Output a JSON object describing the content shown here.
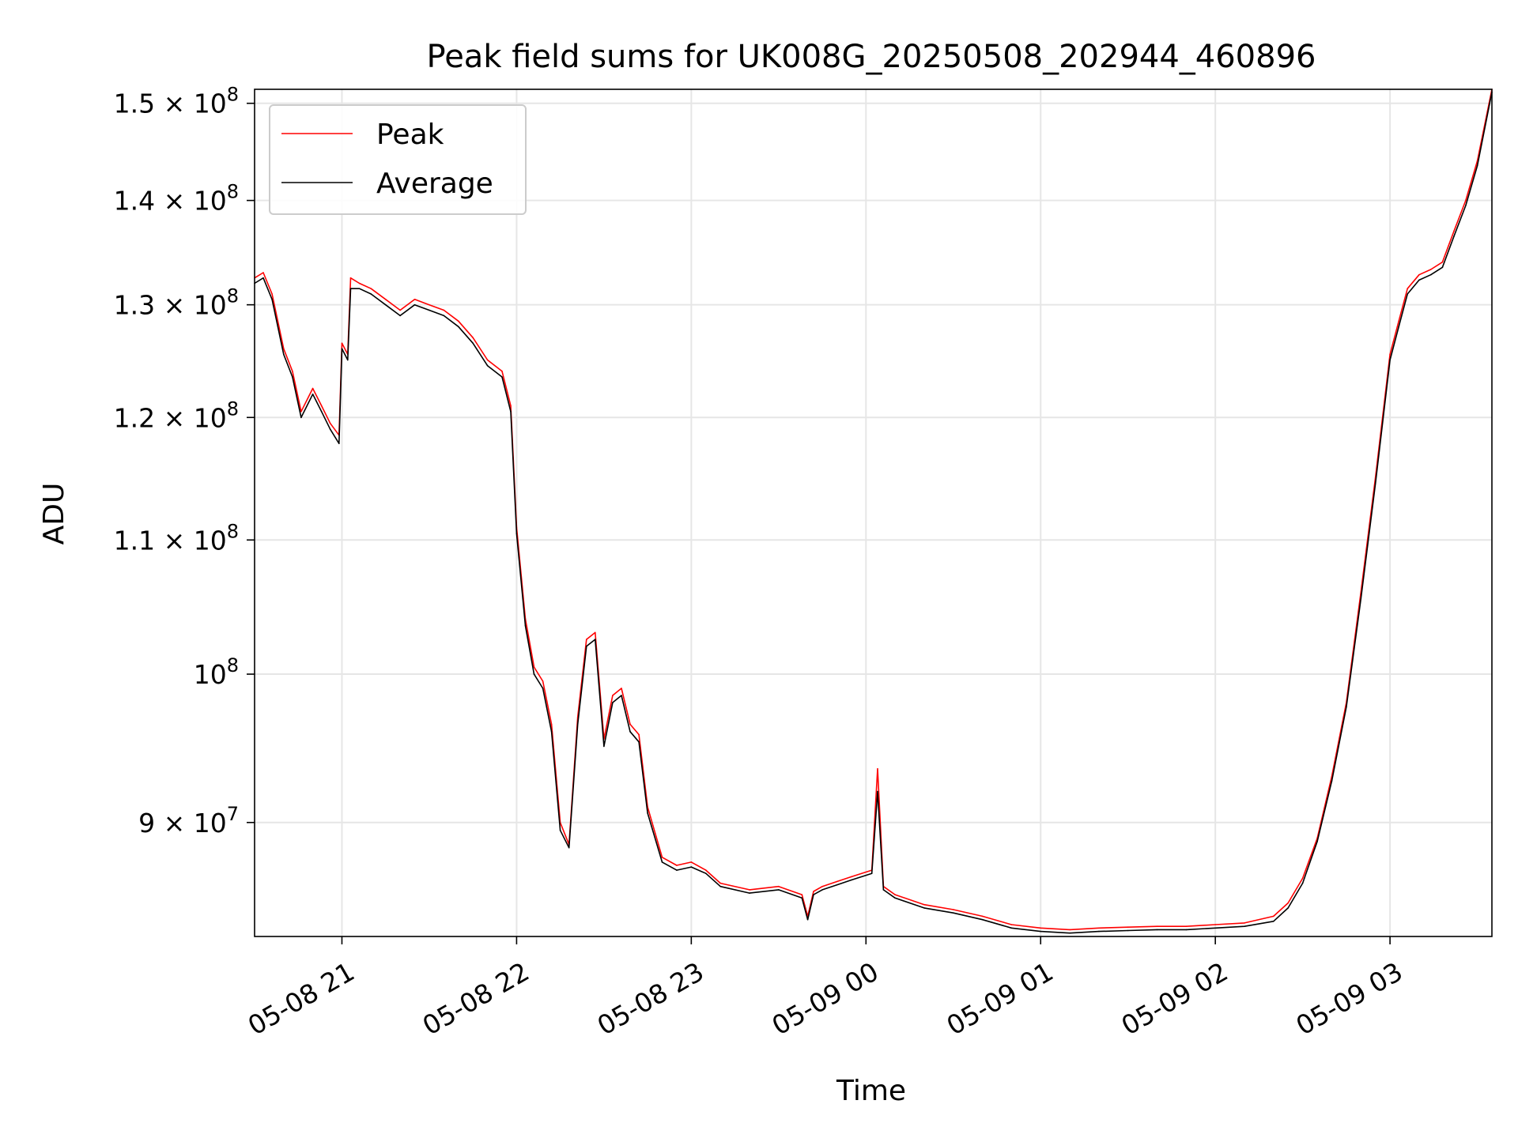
{
  "chart_data": {
    "type": "line",
    "title": "Peak field sums for UK008G_20250508_202944_460896",
    "xlabel": "Time",
    "ylabel": "ADU",
    "y_scale": "log",
    "xlim": [
      "2025-05-08 20:30",
      "2025-05-09 03:35"
    ],
    "ylim": [
      83000000,
      151500000
    ],
    "grid": true,
    "legend_position": "top-left",
    "x_ticks": [
      {
        "t": "2025-05-08 21:00",
        "label": "05-08 21"
      },
      {
        "t": "2025-05-08 22:00",
        "label": "05-08 22"
      },
      {
        "t": "2025-05-08 23:00",
        "label": "05-08 23"
      },
      {
        "t": "2025-05-09 00:00",
        "label": "05-09 00"
      },
      {
        "t": "2025-05-09 01:00",
        "label": "05-09 01"
      },
      {
        "t": "2025-05-09 02:00",
        "label": "05-09 02"
      },
      {
        "t": "2025-05-09 03:00",
        "label": "05-09 03"
      }
    ],
    "y_ticks": [
      {
        "v": 90000000,
        "base": "9 × 10",
        "exp": "7"
      },
      {
        "v": 100000000,
        "base": "10",
        "exp": "8"
      },
      {
        "v": 110000000,
        "base": "1.1 × 10",
        "exp": "8"
      },
      {
        "v": 120000000,
        "base": "1.2 × 10",
        "exp": "8"
      },
      {
        "v": 130000000,
        "base": "1.3 × 10",
        "exp": "8"
      },
      {
        "v": 140000000,
        "base": "1.4 × 10",
        "exp": "8"
      },
      {
        "v": 150000000,
        "base": "1.5 × 10",
        "exp": "8"
      }
    ],
    "series": [
      {
        "name": "Peak",
        "color": "#ff0000",
        "x": [
          "2025-05-08 20:30",
          "2025-05-08 20:33",
          "2025-05-08 20:36",
          "2025-05-08 20:40",
          "2025-05-08 20:43",
          "2025-05-08 20:46",
          "2025-05-08 20:50",
          "2025-05-08 20:53",
          "2025-05-08 20:56",
          "2025-05-08 20:59",
          "2025-05-08 21:00",
          "2025-05-08 21:02",
          "2025-05-08 21:03",
          "2025-05-08 21:06",
          "2025-05-08 21:10",
          "2025-05-08 21:15",
          "2025-05-08 21:20",
          "2025-05-08 21:25",
          "2025-05-08 21:30",
          "2025-05-08 21:35",
          "2025-05-08 21:40",
          "2025-05-08 21:45",
          "2025-05-08 21:50",
          "2025-05-08 21:55",
          "2025-05-08 21:58",
          "2025-05-08 22:00",
          "2025-05-08 22:03",
          "2025-05-08 22:06",
          "2025-05-08 22:09",
          "2025-05-08 22:12",
          "2025-05-08 22:15",
          "2025-05-08 22:18",
          "2025-05-08 22:21",
          "2025-05-08 22:24",
          "2025-05-08 22:27",
          "2025-05-08 22:30",
          "2025-05-08 22:33",
          "2025-05-08 22:36",
          "2025-05-08 22:39",
          "2025-05-08 22:42",
          "2025-05-08 22:45",
          "2025-05-08 22:50",
          "2025-05-08 22:55",
          "2025-05-08 23:00",
          "2025-05-08 23:05",
          "2025-05-08 23:10",
          "2025-05-08 23:20",
          "2025-05-08 23:30",
          "2025-05-08 23:38",
          "2025-05-08 23:40",
          "2025-05-08 23:42",
          "2025-05-08 23:45",
          "2025-05-08 23:50",
          "2025-05-08 23:55",
          "2025-05-09 00:02",
          "2025-05-09 00:04",
          "2025-05-09 00:06",
          "2025-05-09 00:10",
          "2025-05-09 00:20",
          "2025-05-09 00:30",
          "2025-05-09 00:40",
          "2025-05-09 00:50",
          "2025-05-09 01:00",
          "2025-05-09 01:10",
          "2025-05-09 01:20",
          "2025-05-09 01:30",
          "2025-05-09 01:40",
          "2025-05-09 01:50",
          "2025-05-09 02:00",
          "2025-05-09 02:10",
          "2025-05-09 02:20",
          "2025-05-09 02:25",
          "2025-05-09 02:30",
          "2025-05-09 02:35",
          "2025-05-09 02:40",
          "2025-05-09 02:45",
          "2025-05-09 02:50",
          "2025-05-09 02:55",
          "2025-05-09 03:00",
          "2025-05-09 03:03",
          "2025-05-09 03:06",
          "2025-05-09 03:10",
          "2025-05-09 03:14",
          "2025-05-09 03:18",
          "2025-05-09 03:22",
          "2025-05-09 03:26",
          "2025-05-09 03:30",
          "2025-05-09 03:35"
        ],
        "values": [
          132500000,
          133000000,
          131000000,
          126000000,
          124000000,
          120500000,
          122500000,
          121000000,
          119500000,
          118500000,
          126500000,
          125500000,
          132500000,
          132000000,
          131500000,
          130500000,
          129500000,
          130500000,
          130000000,
          129500000,
          128500000,
          127000000,
          125000000,
          124000000,
          121000000,
          111000000,
          104000000,
          100500000,
          99500000,
          96500000,
          90000000,
          88600000,
          97000000,
          102500000,
          103000000,
          95500000,
          98500000,
          99000000,
          96500000,
          95800000,
          91000000,
          87800000,
          87300000,
          87500000,
          87000000,
          86200000,
          85800000,
          86000000,
          85500000,
          84200000,
          85700000,
          86000000,
          86300000,
          86600000,
          87000000,
          93500000,
          86000000,
          85500000,
          84900000,
          84600000,
          84200000,
          83700000,
          83500000,
          83400000,
          83500000,
          83550000,
          83600000,
          83600000,
          83700000,
          83800000,
          84200000,
          85000000,
          86500000,
          89000000,
          93000000,
          98000000,
          106000000,
          115000000,
          125500000,
          128500000,
          131500000,
          132800000,
          133300000,
          134000000,
          137000000,
          140000000,
          144000000,
          151500000
        ]
      },
      {
        "name": "Average",
        "color": "#000000",
        "x": [
          "2025-05-08 20:30",
          "2025-05-08 20:33",
          "2025-05-08 20:36",
          "2025-05-08 20:40",
          "2025-05-08 20:43",
          "2025-05-08 20:46",
          "2025-05-08 20:50",
          "2025-05-08 20:53",
          "2025-05-08 20:56",
          "2025-05-08 20:59",
          "2025-05-08 21:00",
          "2025-05-08 21:02",
          "2025-05-08 21:03",
          "2025-05-08 21:06",
          "2025-05-08 21:10",
          "2025-05-08 21:15",
          "2025-05-08 21:20",
          "2025-05-08 21:25",
          "2025-05-08 21:30",
          "2025-05-08 21:35",
          "2025-05-08 21:40",
          "2025-05-08 21:45",
          "2025-05-08 21:50",
          "2025-05-08 21:55",
          "2025-05-08 21:58",
          "2025-05-08 22:00",
          "2025-05-08 22:03",
          "2025-05-08 22:06",
          "2025-05-08 22:09",
          "2025-05-08 22:12",
          "2025-05-08 22:15",
          "2025-05-08 22:18",
          "2025-05-08 22:21",
          "2025-05-08 22:24",
          "2025-05-08 22:27",
          "2025-05-08 22:30",
          "2025-05-08 22:33",
          "2025-05-08 22:36",
          "2025-05-08 22:39",
          "2025-05-08 22:42",
          "2025-05-08 22:45",
          "2025-05-08 22:50",
          "2025-05-08 22:55",
          "2025-05-08 23:00",
          "2025-05-08 23:05",
          "2025-05-08 23:10",
          "2025-05-08 23:20",
          "2025-05-08 23:30",
          "2025-05-08 23:38",
          "2025-05-08 23:40",
          "2025-05-08 23:42",
          "2025-05-08 23:45",
          "2025-05-08 23:50",
          "2025-05-08 23:55",
          "2025-05-09 00:02",
          "2025-05-09 00:04",
          "2025-05-09 00:06",
          "2025-05-09 00:10",
          "2025-05-09 00:20",
          "2025-05-09 00:30",
          "2025-05-09 00:40",
          "2025-05-09 00:50",
          "2025-05-09 01:00",
          "2025-05-09 01:10",
          "2025-05-09 01:20",
          "2025-05-09 01:30",
          "2025-05-09 01:40",
          "2025-05-09 01:50",
          "2025-05-09 02:00",
          "2025-05-09 02:10",
          "2025-05-09 02:20",
          "2025-05-09 02:25",
          "2025-05-09 02:30",
          "2025-05-09 02:35",
          "2025-05-09 02:40",
          "2025-05-09 02:45",
          "2025-05-09 02:50",
          "2025-05-09 02:55",
          "2025-05-09 03:00",
          "2025-05-09 03:03",
          "2025-05-09 03:06",
          "2025-05-09 03:10",
          "2025-05-09 03:14",
          "2025-05-09 03:18",
          "2025-05-09 03:22",
          "2025-05-09 03:26",
          "2025-05-09 03:30",
          "2025-05-09 03:35"
        ],
        "values": [
          132000000,
          132500000,
          130500000,
          125500000,
          123500000,
          120000000,
          122000000,
          120500000,
          119000000,
          117800000,
          126000000,
          125000000,
          131500000,
          131500000,
          131000000,
          130000000,
          129000000,
          130000000,
          129500000,
          129000000,
          128000000,
          126500000,
          124500000,
          123500000,
          120500000,
          110500000,
          103500000,
          100000000,
          99000000,
          96000000,
          89500000,
          88400000,
          96500000,
          102000000,
          102500000,
          95000000,
          98000000,
          98500000,
          96000000,
          95300000,
          90600000,
          87500000,
          87000000,
          87200000,
          86800000,
          86000000,
          85600000,
          85800000,
          85300000,
          84000000,
          85500000,
          85800000,
          86100000,
          86400000,
          86800000,
          92000000,
          85800000,
          85300000,
          84700000,
          84400000,
          84000000,
          83500000,
          83300000,
          83200000,
          83300000,
          83350000,
          83400000,
          83400000,
          83500000,
          83600000,
          83900000,
          84700000,
          86200000,
          88800000,
          92700000,
          97700000,
          105500000,
          114500000,
          125000000,
          128000000,
          131000000,
          132300000,
          132800000,
          133500000,
          136500000,
          139500000,
          143500000,
          151200000
        ]
      }
    ]
  }
}
